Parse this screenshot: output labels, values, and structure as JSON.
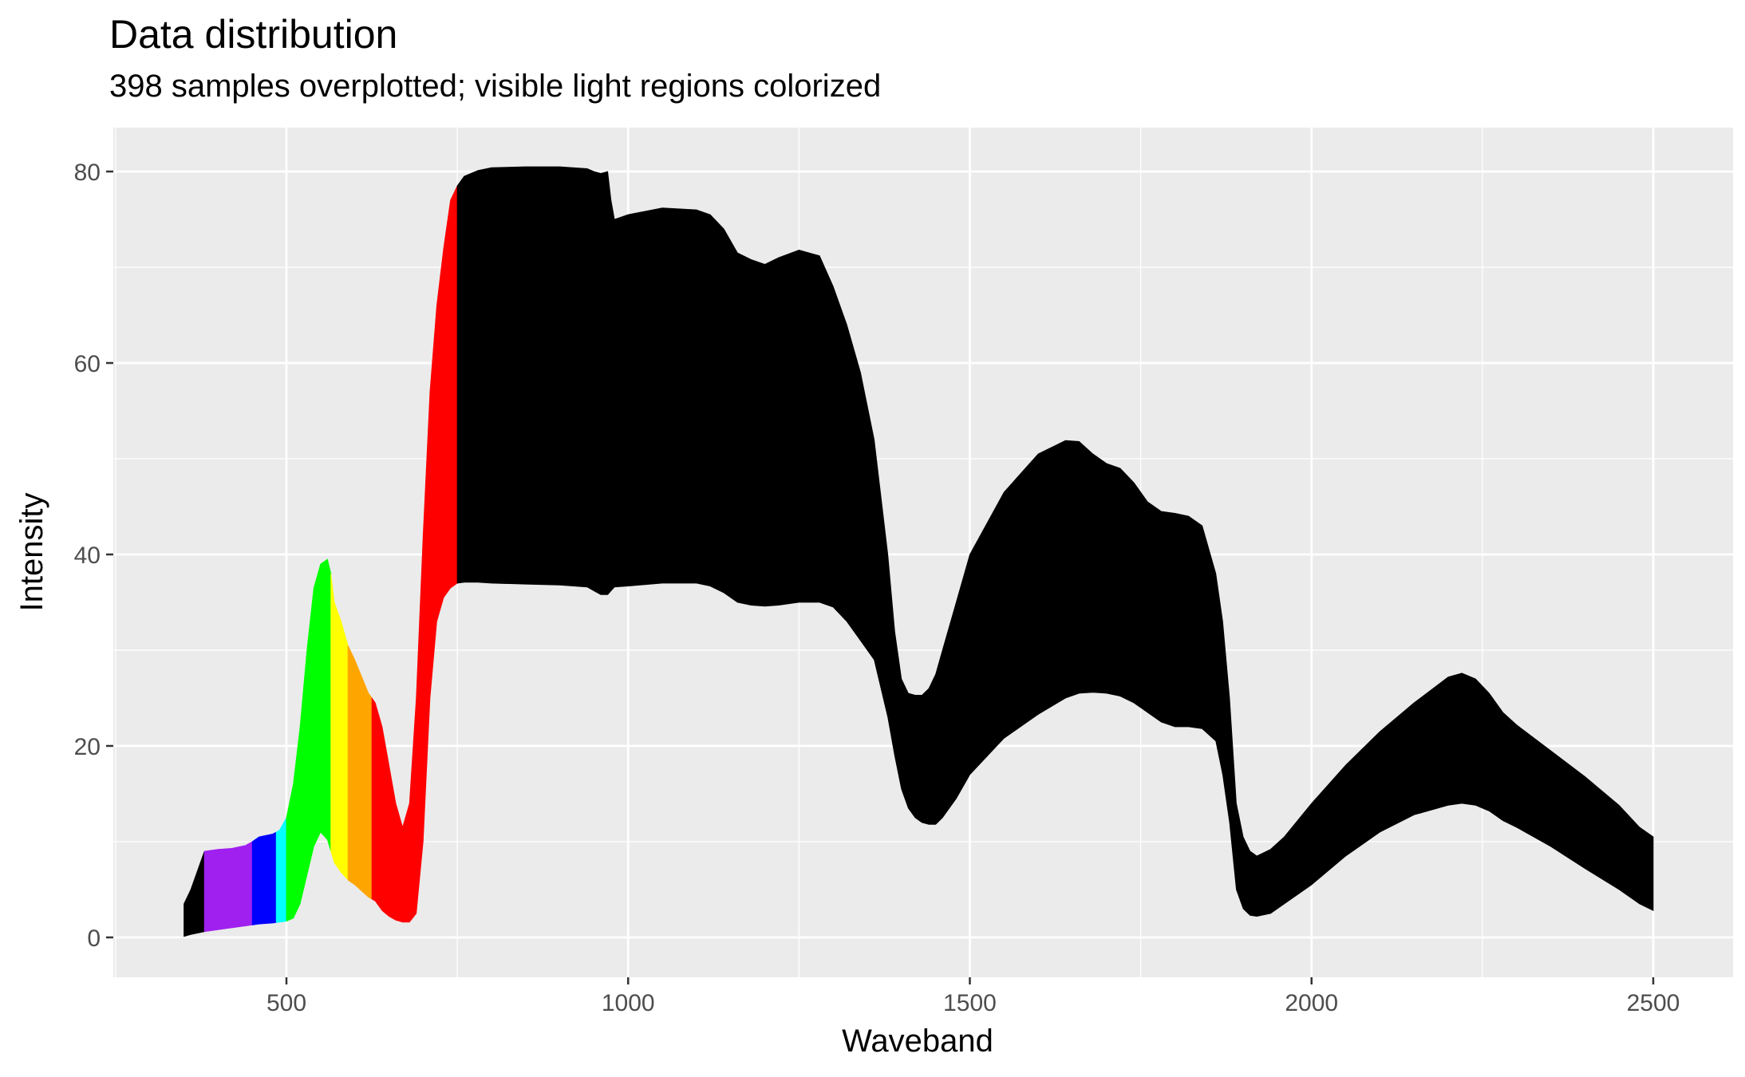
{
  "chart_data": {
    "type": "area",
    "title": "Data distribution",
    "subtitle": "398 samples overplotted; visible light regions colorized",
    "xlabel": "Waveband",
    "ylabel": "Intensity",
    "xlim": [
      350,
      2500
    ],
    "ylim": [
      0,
      80
    ],
    "x_ticks": [
      500,
      1000,
      1500,
      2000,
      2500
    ],
    "y_ticks": [
      0,
      20,
      40,
      60,
      80
    ],
    "grid": true,
    "panel_background": "#EBEBEB",
    "envelope": {
      "x": [
        350,
        360,
        380,
        400,
        420,
        440,
        450,
        460,
        480,
        490,
        500,
        510,
        520,
        530,
        540,
        550,
        560,
        565,
        570,
        580,
        590,
        600,
        620,
        630,
        640,
        650,
        660,
        670,
        680,
        690,
        700,
        710,
        720,
        730,
        740,
        750,
        760,
        780,
        800,
        850,
        900,
        940,
        950,
        960,
        970,
        975,
        980,
        1000,
        1050,
        1100,
        1120,
        1140,
        1160,
        1180,
        1200,
        1220,
        1250,
        1280,
        1300,
        1320,
        1340,
        1360,
        1380,
        1390,
        1400,
        1410,
        1420,
        1430,
        1440,
        1450,
        1460,
        1480,
        1500,
        1550,
        1600,
        1640,
        1660,
        1680,
        1700,
        1720,
        1740,
        1760,
        1780,
        1800,
        1820,
        1840,
        1860,
        1870,
        1880,
        1890,
        1900,
        1910,
        1920,
        1940,
        1960,
        2000,
        2050,
        2100,
        2150,
        2200,
        2220,
        2240,
        2260,
        2280,
        2300,
        2350,
        2400,
        2450,
        2480,
        2500
      ],
      "upper": [
        3.5,
        5.0,
        9.0,
        9.2,
        9.3,
        9.6,
        10.0,
        10.5,
        10.8,
        11.2,
        12.5,
        16.0,
        22.0,
        30.0,
        36.5,
        39.0,
        39.5,
        38.0,
        35.0,
        33.0,
        30.5,
        29.0,
        25.5,
        24.5,
        22.0,
        18.0,
        14.0,
        11.5,
        14.0,
        25.0,
        42.0,
        57.0,
        66.0,
        72.0,
        77.0,
        78.5,
        79.5,
        80.1,
        80.4,
        80.5,
        80.5,
        80.3,
        80.0,
        79.8,
        80.0,
        77.0,
        75.0,
        75.5,
        76.2,
        76.0,
        75.5,
        74.0,
        71.5,
        70.8,
        70.3,
        71.0,
        71.8,
        71.2,
        68.0,
        64.0,
        59.0,
        52.0,
        40.0,
        32.0,
        27.0,
        25.5,
        25.3,
        25.3,
        26.0,
        27.5,
        30.0,
        35.0,
        40.0,
        46.5,
        50.5,
        51.9,
        51.8,
        50.5,
        49.5,
        49.0,
        47.5,
        45.5,
        44.5,
        44.3,
        44.0,
        43.0,
        38.0,
        33.0,
        25.0,
        14.0,
        10.5,
        9.0,
        8.5,
        9.2,
        10.5,
        14.0,
        18.0,
        21.5,
        24.5,
        27.2,
        27.6,
        27.0,
        25.5,
        23.5,
        22.2,
        19.5,
        16.8,
        13.8,
        11.5,
        10.5
      ],
      "lower": [
        0.1,
        0.3,
        0.6,
        0.8,
        1.0,
        1.2,
        1.3,
        1.4,
        1.5,
        1.6,
        1.7,
        2.0,
        3.5,
        6.5,
        9.5,
        11.0,
        10.2,
        9.0,
        7.8,
        6.8,
        6.0,
        5.5,
        4.2,
        3.8,
        2.8,
        2.2,
        1.8,
        1.6,
        1.6,
        2.5,
        10.0,
        25.0,
        33.0,
        35.5,
        36.5,
        37.0,
        37.1,
        37.1,
        37.0,
        36.9,
        36.8,
        36.6,
        36.2,
        35.8,
        35.8,
        36.2,
        36.6,
        36.7,
        37.0,
        37.0,
        36.7,
        36.0,
        35.0,
        34.7,
        34.6,
        34.7,
        35.0,
        35.0,
        34.5,
        33.0,
        31.0,
        29.0,
        23.0,
        19.0,
        15.5,
        13.5,
        12.5,
        12.0,
        11.8,
        11.8,
        12.5,
        14.5,
        17.0,
        20.8,
        23.3,
        25.0,
        25.5,
        25.6,
        25.5,
        25.2,
        24.5,
        23.5,
        22.5,
        22.0,
        22.0,
        21.8,
        20.5,
        17.0,
        12.0,
        5.0,
        3.0,
        2.3,
        2.2,
        2.5,
        3.5,
        5.5,
        8.5,
        11.0,
        12.8,
        13.8,
        14.0,
        13.8,
        13.2,
        12.2,
        11.5,
        9.5,
        7.2,
        5.0,
        3.5,
        2.8
      ]
    },
    "series": [
      {
        "x_range": [
          350,
          380
        ],
        "color": "#000000"
      },
      {
        "x_range": [
          380,
          450
        ],
        "color": "#A020F0"
      },
      {
        "x_range": [
          450,
          485
        ],
        "color": "#0000FF"
      },
      {
        "x_range": [
          485,
          500
        ],
        "color": "#00FFFF"
      },
      {
        "x_range": [
          500,
          565
        ],
        "color": "#00FF00"
      },
      {
        "x_range": [
          565,
          590
        ],
        "color": "#FFFF00"
      },
      {
        "x_range": [
          590,
          625
        ],
        "color": "#FFA500"
      },
      {
        "x_range": [
          625,
          750
        ],
        "color": "#FF0000"
      },
      {
        "x_range": [
          750,
          2500
        ],
        "color": "#000000"
      }
    ]
  }
}
